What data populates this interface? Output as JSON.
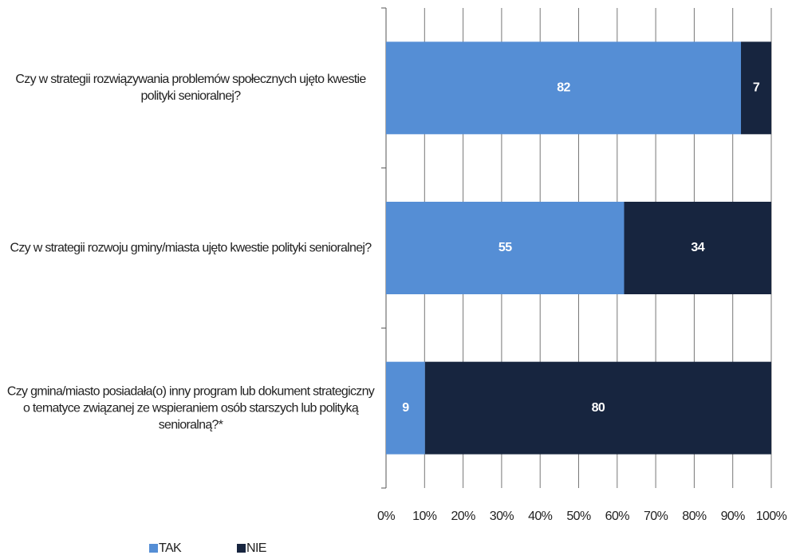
{
  "chart_data": {
    "type": "bar",
    "orientation": "horizontal",
    "stacking": "percent",
    "categories": [
      "Czy w strategii rozwiązywania problemów społecznych ujęto kwestie polityki senioralnej?",
      "Czy w strategii rozwoju gminy/miasta ujęto kwestie polityki senioralnej?",
      "Czy gmina/miasto posiadała(o) inny program lub dokument strategiczny o tematyce związanej ze wspieraniem osób starszych lub polityką senioralną?*"
    ],
    "series": [
      {
        "name": "TAK",
        "color": "#558ed5",
        "values": [
          82,
          55,
          9
        ]
      },
      {
        "name": "NIE",
        "color": "#17253f",
        "values": [
          7,
          34,
          80
        ]
      }
    ],
    "xlim": [
      0,
      100
    ],
    "xticks": [
      {
        "value": 0,
        "label": "0%"
      },
      {
        "value": 10,
        "label": "10%"
      },
      {
        "value": 20,
        "label": "20%"
      },
      {
        "value": 30,
        "label": "30%"
      },
      {
        "value": 40,
        "label": "40%"
      },
      {
        "value": 50,
        "label": "50%"
      },
      {
        "value": 60,
        "label": "60%"
      },
      {
        "value": 70,
        "label": "70%"
      },
      {
        "value": 80,
        "label": "80%"
      },
      {
        "value": 90,
        "label": "90%"
      },
      {
        "value": 100,
        "label": "100%"
      }
    ],
    "grid": true,
    "legend": "bottom"
  }
}
